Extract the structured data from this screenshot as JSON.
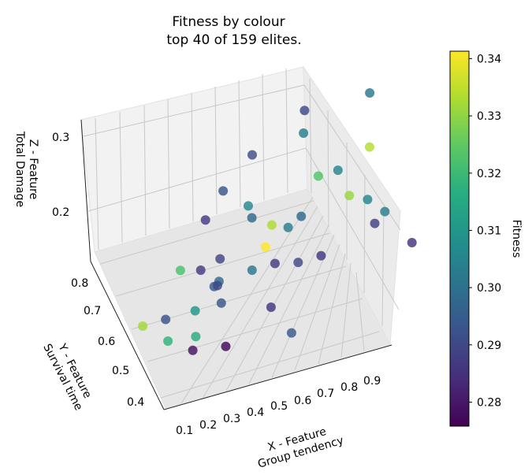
{
  "chart_data": {
    "type": "scatter",
    "projection": "3d",
    "title_line1": "Fitness by colour",
    "title_line2": "top 40 of 159 elites.",
    "xlabel_line1": "X - Feature",
    "xlabel_line2": "Group tendency",
    "ylabel_line1": "Y - Feature",
    "ylabel_line2": "Survival time",
    "zlabel_line1": "Z - Feature",
    "zlabel_line2": "Total Damage",
    "colorbar_label": "Fitness",
    "colormap": "viridis",
    "xlim": [
      0.05,
      0.97
    ],
    "ylim": [
      0.36,
      0.83
    ],
    "zlim": [
      0.12,
      0.33
    ],
    "clim": [
      0.2758,
      0.3413
    ],
    "xticks": [
      "0.1",
      "0.2",
      "0.3",
      "0.4",
      "0.5",
      "0.6",
      "0.7",
      "0.8",
      "0.9"
    ],
    "yticks": [
      "0.4",
      "0.5",
      "0.6",
      "0.7",
      "0.8"
    ],
    "zticks": [
      "0.2",
      "0.3"
    ],
    "cticks": [
      "0.28",
      "0.29",
      "0.30",
      "0.31",
      "0.32",
      "0.33",
      "0.34"
    ],
    "grid": true,
    "legend": "colorbar right",
    "points": [
      {
        "x": 0.15,
        "y": 0.45,
        "z": 0.3,
        "c": 0.322
      },
      {
        "x": 0.3,
        "y": 0.6,
        "z": 0.28,
        "c": 0.287
      },
      {
        "x": 0.38,
        "y": 0.65,
        "z": 0.29,
        "c": 0.293
      },
      {
        "x": 0.44,
        "y": 0.62,
        "z": 0.27,
        "c": 0.306
      },
      {
        "x": 0.44,
        "y": 0.6,
        "z": 0.26,
        "c": 0.298
      },
      {
        "x": 0.5,
        "y": 0.71,
        "z": 0.3,
        "c": 0.291
      },
      {
        "x": 0.7,
        "y": 0.79,
        "z": 0.3,
        "c": 0.29
      },
      {
        "x": 0.68,
        "y": 0.76,
        "z": 0.28,
        "c": 0.303
      },
      {
        "x": 0.66,
        "y": 0.63,
        "z": 0.28,
        "c": 0.323
      },
      {
        "x": 0.72,
        "y": 0.63,
        "z": 0.28,
        "c": 0.305
      },
      {
        "x": 0.49,
        "y": 0.58,
        "z": 0.25,
        "c": 0.333
      },
      {
        "x": 0.45,
        "y": 0.54,
        "z": 0.24,
        "c": 0.341
      },
      {
        "x": 0.53,
        "y": 0.56,
        "z": 0.25,
        "c": 0.303
      },
      {
        "x": 0.58,
        "y": 0.58,
        "z": 0.25,
        "c": 0.298
      },
      {
        "x": 0.12,
        "y": 0.5,
        "z": 0.19,
        "c": 0.292
      },
      {
        "x": 0.26,
        "y": 0.56,
        "z": 0.22,
        "c": 0.287
      },
      {
        "x": 0.32,
        "y": 0.56,
        "z": 0.23,
        "c": 0.289
      },
      {
        "x": 0.3,
        "y": 0.53,
        "z": 0.21,
        "c": 0.298
      },
      {
        "x": 0.28,
        "y": 0.52,
        "z": 0.21,
        "c": 0.295
      },
      {
        "x": 0.29,
        "y": 0.52,
        "z": 0.21,
        "c": 0.29
      },
      {
        "x": 0.75,
        "y": 0.63,
        "z": 0.23,
        "c": 0.331
      },
      {
        "x": 0.85,
        "y": 0.7,
        "z": 0.26,
        "c": 0.334
      },
      {
        "x": 0.8,
        "y": 0.62,
        "z": 0.22,
        "c": 0.305
      },
      {
        "x": 0.8,
        "y": 0.58,
        "z": 0.2,
        "c": 0.288
      },
      {
        "x": 0.21,
        "y": 0.5,
        "z": 0.19,
        "c": 0.31
      },
      {
        "x": 0.19,
        "y": 0.46,
        "z": 0.17,
        "c": 0.316
      },
      {
        "x": 0.29,
        "y": 0.5,
        "z": 0.19,
        "c": 0.293
      },
      {
        "x": 0.41,
        "y": 0.55,
        "z": 0.2,
        "c": 0.302
      },
      {
        "x": 0.48,
        "y": 0.55,
        "z": 0.2,
        "c": 0.287
      },
      {
        "x": 0.55,
        "y": 0.55,
        "z": 0.19,
        "c": 0.29
      },
      {
        "x": 0.62,
        "y": 0.55,
        "z": 0.19,
        "c": 0.286
      },
      {
        "x": 0.85,
        "y": 0.62,
        "z": 0.19,
        "c": 0.304
      },
      {
        "x": 0.9,
        "y": 0.56,
        "z": 0.16,
        "c": 0.285
      },
      {
        "x": 0.05,
        "y": 0.5,
        "z": 0.19,
        "c": 0.332
      },
      {
        "x": 0.11,
        "y": 0.47,
        "z": 0.17,
        "c": 0.318
      },
      {
        "x": 0.17,
        "y": 0.44,
        "z": 0.16,
        "c": 0.279
      },
      {
        "x": 0.27,
        "y": 0.44,
        "z": 0.15,
        "c": 0.277
      },
      {
        "x": 0.43,
        "y": 0.48,
        "z": 0.17,
        "c": 0.286
      },
      {
        "x": 0.47,
        "y": 0.44,
        "z": 0.14,
        "c": 0.294
      },
      {
        "x": 0.89,
        "y": 0.77,
        "z": 0.31,
        "c": 0.302
      }
    ]
  }
}
